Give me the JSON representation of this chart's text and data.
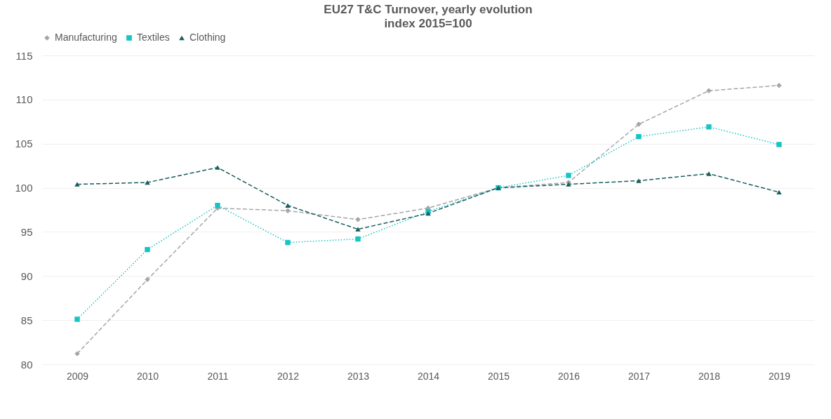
{
  "chart_data": {
    "type": "line",
    "title": "EU27 T&C Turnover, yearly evolution",
    "subtitle": "index 2015=100",
    "categories": [
      "2009",
      "2010",
      "2011",
      "2012",
      "2013",
      "2014",
      "2015",
      "2016",
      "2017",
      "2018",
      "2019"
    ],
    "series": [
      {
        "name": "Manufacturing",
        "color": "#a6a6a6",
        "marker": "diamond",
        "line_style": "dashed",
        "values": [
          81.2,
          89.6,
          97.7,
          97.4,
          96.4,
          97.7,
          100,
          100.6,
          107.2,
          111.0,
          111.6
        ]
      },
      {
        "name": "Textiles",
        "color": "#17c4c4",
        "marker": "square",
        "line_style": "dotted",
        "values": [
          85.1,
          93.0,
          98.0,
          93.8,
          94.2,
          97.3,
          100,
          101.4,
          105.8,
          106.9,
          104.9
        ]
      },
      {
        "name": "Clothing",
        "color": "#1a5e5e",
        "marker": "triangle",
        "line_style": "dashed",
        "values": [
          100.4,
          100.6,
          102.3,
          98.0,
          95.3,
          97.1,
          100,
          100.4,
          100.8,
          101.6,
          99.5
        ]
      }
    ],
    "ylim": [
      80,
      115
    ],
    "yticks": [
      80,
      85,
      90,
      95,
      100,
      105,
      110,
      115
    ],
    "grid": "y",
    "legend": "top"
  }
}
